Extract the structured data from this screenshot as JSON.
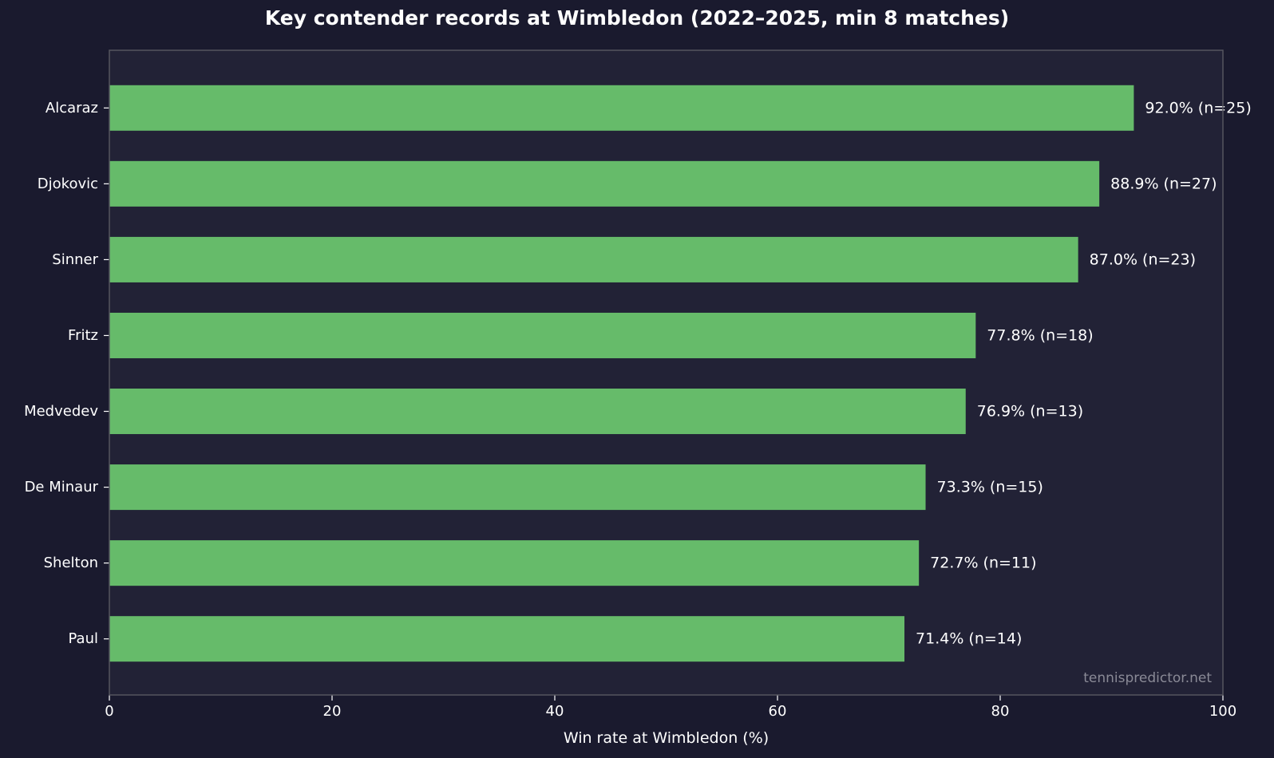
{
  "colors": {
    "background": "#1a1a2e",
    "plot_background": "#222236",
    "bar": "#66bb6a",
    "text": "#ffffff",
    "axis": "#55555f",
    "watermark": "#8a8a96"
  },
  "chart_data": {
    "type": "bar",
    "orientation": "horizontal",
    "title": "Key contender records at Wimbledon (2022–2025, min 8 matches)",
    "xlabel": "Win rate at Wimbledon (%)",
    "ylabel": "",
    "xlim": [
      0,
      100
    ],
    "xticks": [
      0,
      20,
      40,
      60,
      80,
      100
    ],
    "grid": false,
    "categories": [
      "Alcaraz",
      "Djokovic",
      "Sinner",
      "Fritz",
      "Medvedev",
      "De Minaur",
      "Shelton",
      "Paul"
    ],
    "values": [
      92.0,
      88.9,
      87.0,
      77.8,
      76.9,
      73.3,
      72.7,
      71.4
    ],
    "data_labels": [
      "92.0% (n=25)",
      "88.9% (n=27)",
      "87.0% (n=23)",
      "77.8% (n=18)",
      "76.9% (n=13)",
      "73.3% (n=15)",
      "72.7% (n=11)",
      "71.4% (n=14)"
    ]
  },
  "watermark": "tennispredictor.net"
}
